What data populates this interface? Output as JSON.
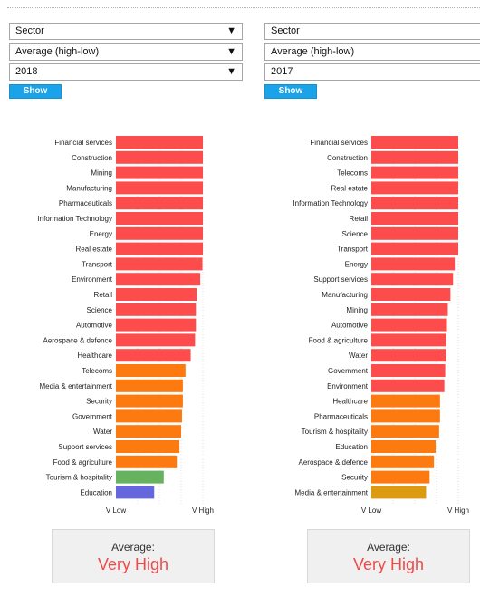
{
  "left": {
    "filters": {
      "dimension": "Sector",
      "sort": "Average (high-low)",
      "year": "2018"
    },
    "show_label": "Show",
    "average": {
      "label": "Average:",
      "value": "Very High"
    },
    "chart_data": {
      "type": "bar",
      "orientation": "horizontal",
      "categories": [
        "Financial services",
        "Construction",
        "Mining",
        "Manufacturing",
        "Pharmaceuticals",
        "Information Technology",
        "Energy",
        "Real estate",
        "Transport",
        "Environment",
        "Retail",
        "Science",
        "Automotive",
        "Aerospace & defence",
        "Healthcare",
        "Telecoms",
        "Media & entertainment",
        "Security",
        "Government",
        "Water",
        "Support services",
        "Food & agriculture",
        "Tourism & hospitality",
        "Education"
      ],
      "values": [
        1.0,
        1.0,
        1.0,
        1.0,
        1.0,
        1.0,
        1.0,
        1.0,
        0.995,
        0.97,
        0.93,
        0.92,
        0.92,
        0.91,
        0.86,
        0.8,
        0.77,
        0.77,
        0.76,
        0.75,
        0.73,
        0.7,
        0.55,
        0.44
      ],
      "colors": [
        "#fc4c4c",
        "#fc4c4c",
        "#fc4c4c",
        "#fc4c4c",
        "#fc4c4c",
        "#fc4c4c",
        "#fc4c4c",
        "#fc4c4c",
        "#fc4c4c",
        "#fc4c4c",
        "#fc4c4c",
        "#fc4c4c",
        "#fc4c4c",
        "#fc4c4c",
        "#fc4c4c",
        "#fc7a10",
        "#fc7a10",
        "#fc7a10",
        "#fc7a10",
        "#fc7a10",
        "#fc7a10",
        "#fc7a10",
        "#66b25e",
        "#6666dd"
      ],
      "xtick_labels": [
        "V Low",
        "V High"
      ],
      "xlim": [
        0,
        1
      ]
    }
  },
  "right": {
    "filters": {
      "dimension": "Sector",
      "sort": "Average (high-low)",
      "year": "2017"
    },
    "show_label": "Show",
    "average": {
      "label": "Average:",
      "value": "Very High"
    },
    "chart_data": {
      "type": "bar",
      "orientation": "horizontal",
      "categories": [
        "Financial services",
        "Construction",
        "Telecoms",
        "Real estate",
        "Information Technology",
        "Retail",
        "Science",
        "Transport",
        "Energy",
        "Support services",
        "Manufacturing",
        "Mining",
        "Automotive",
        "Food & agriculture",
        "Water",
        "Government",
        "Environment",
        "Healthcare",
        "Pharmaceuticals",
        "Tourism & hospitality",
        "Education",
        "Aerospace & defence",
        "Security",
        "Media & entertainment"
      ],
      "values": [
        1.0,
        1.0,
        1.0,
        1.0,
        1.0,
        1.0,
        1.0,
        1.0,
        0.96,
        0.94,
        0.91,
        0.88,
        0.87,
        0.86,
        0.86,
        0.85,
        0.84,
        0.79,
        0.79,
        0.78,
        0.74,
        0.72,
        0.67,
        0.63
      ],
      "colors": [
        "#fc4c4c",
        "#fc4c4c",
        "#fc4c4c",
        "#fc4c4c",
        "#fc4c4c",
        "#fc4c4c",
        "#fc4c4c",
        "#fc4c4c",
        "#fc4c4c",
        "#fc4c4c",
        "#fc4c4c",
        "#fc4c4c",
        "#fc4c4c",
        "#fc4c4c",
        "#fc4c4c",
        "#fc4c4c",
        "#fc4c4c",
        "#fc7a10",
        "#fc7a10",
        "#fc7a10",
        "#fc7a10",
        "#fc7a10",
        "#fc7a10",
        "#db9a10"
      ],
      "xtick_labels": [
        "V Low",
        "V High"
      ],
      "xlim": [
        0,
        1
      ]
    }
  },
  "icons": {
    "dropdown": "triangle-down-icon"
  }
}
